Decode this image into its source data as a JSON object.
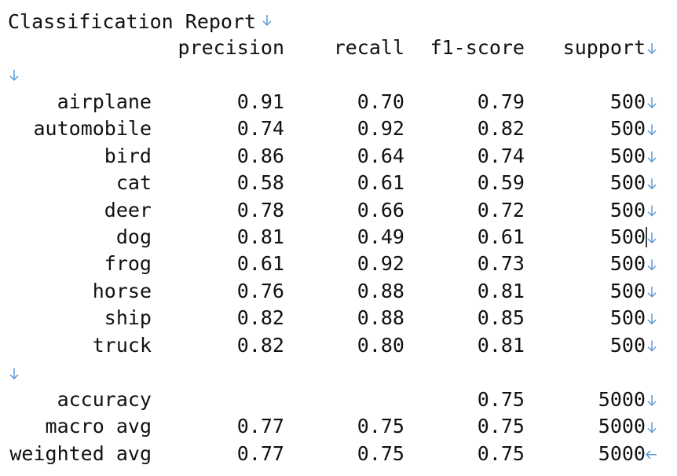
{
  "title": "Classification Report",
  "header": [
    "precision",
    "recall",
    "f1-score",
    "support"
  ],
  "rows": [
    [
      "airplane",
      "0.91",
      "0.70",
      "0.79",
      "500"
    ],
    [
      "automobile",
      "0.74",
      "0.92",
      "0.82",
      "500"
    ],
    [
      "bird",
      "0.86",
      "0.64",
      "0.74",
      "500"
    ],
    [
      "cat",
      "0.58",
      "0.61",
      "0.59",
      "500"
    ],
    [
      "deer",
      "0.78",
      "0.66",
      "0.72",
      "500"
    ],
    [
      "dog",
      "0.81",
      "0.49",
      "0.61",
      "500"
    ],
    [
      "frog",
      "0.61",
      "0.92",
      "0.73",
      "500"
    ],
    [
      "horse",
      "0.76",
      "0.88",
      "0.81",
      "500"
    ],
    [
      "ship",
      "0.82",
      "0.88",
      "0.85",
      "500"
    ],
    [
      "truck",
      "0.82",
      "0.80",
      "0.81",
      "500"
    ]
  ],
  "summary": {
    "accuracy": {
      "label": "accuracy",
      "f1_score": "0.75",
      "support": "5000"
    },
    "macro_avg": {
      "label": "macro avg",
      "precision": "0.77",
      "recall": "0.75",
      "f1_score": "0.75",
      "support": "5000"
    },
    "weighted_avg": {
      "label": "weighted avg",
      "precision": "0.77",
      "recall": "0.75",
      "f1_score": "0.75",
      "support": "5000"
    }
  }
}
